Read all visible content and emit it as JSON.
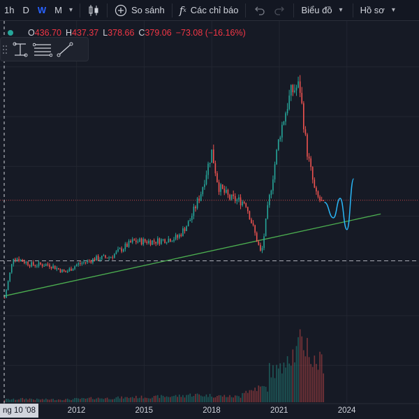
{
  "toolbar": {
    "intervals": [
      "1h",
      "D",
      "W",
      "M"
    ],
    "active_interval": "W",
    "compare_label": "So sánh",
    "indicators_label": "Các chỉ báo",
    "chart_type_label": "Biểu đồ",
    "profile_label": "Hồ sơ"
  },
  "ohlc": {
    "open_label": "O",
    "open": "436.70",
    "high_label": "H",
    "high": "437.37",
    "low_label": "L",
    "low": "378.66",
    "close_label": "C",
    "close": "379.06",
    "change": "−73.08 (−16.16%)"
  },
  "crosshair_date": "ng 10 '08",
  "x_axis_labels": [
    "2012",
    "2015",
    "2018",
    "2021",
    "2024"
  ],
  "colors": {
    "up": "#26a69a",
    "down": "#ef5350",
    "trendline": "#4caf50",
    "projection": "#29b6f6",
    "accent": "#2962ff"
  },
  "icons": {
    "chevron": "chevron-down-icon",
    "candles": "candlestick-icon",
    "compare": "plus-circle-icon",
    "indicators": "fx-icon",
    "undo": "undo-icon",
    "redo": "redo-icon",
    "drag": "drag-handle-icon",
    "text": "text-tool-icon",
    "lines": "horizontal-lines-icon",
    "trend": "trend-line-icon"
  },
  "chart_data": {
    "type": "candlestick",
    "x": [
      2008.8,
      2009.2,
      2010.0,
      2010.8,
      2011.5,
      2012.0,
      2012.8,
      2013.5,
      2014.5,
      2015.5,
      2016.5,
      2017.0,
      2017.5,
      2018.0,
      2018.3,
      2018.8,
      2019.5,
      2020.2,
      2020.5,
      2021.0,
      2021.5,
      2021.9,
      2022.2,
      2022.6,
      2023.0,
      2023.5,
      2024.0,
      2024.3
    ],
    "y": [
      31,
      52,
      48,
      48,
      44,
      48,
      51,
      52,
      60,
      60,
      62,
      70,
      84,
      106,
      88,
      82,
      80,
      53,
      78,
      114,
      136,
      140,
      108,
      84,
      78,
      80,
      66,
      92
    ],
    "volume_relative": [
      0.05,
      0.06,
      0.05,
      0.05,
      0.05,
      0.06,
      0.07,
      0.07,
      0.08,
      0.09,
      0.09,
      0.1,
      0.11,
      0.13,
      0.12,
      0.11,
      0.1,
      0.2,
      0.25,
      0.55,
      0.85,
      1.0,
      0.7,
      0.5
    ],
    "projection": [
      [
        2023.0,
        80
      ],
      [
        2023.4,
        72
      ],
      [
        2023.7,
        82
      ],
      [
        2024.0,
        66
      ],
      [
        2024.3,
        92
      ]
    ],
    "trendline": [
      [
        2008.8,
        32
      ],
      [
        2025.5,
        74
      ]
    ],
    "horizontal_levels": [
      {
        "value": 81,
        "style": "dotted",
        "color": "#ef5350"
      },
      {
        "value": 50,
        "style": "dashed",
        "color": "#d1d4dc"
      }
    ],
    "x_ticks": [
      2012,
      2015,
      2018,
      2021,
      2024
    ],
    "xlim": [
      2008.6,
      2027.2
    ],
    "ylim": [
      28,
      146
    ],
    "grid": true
  }
}
